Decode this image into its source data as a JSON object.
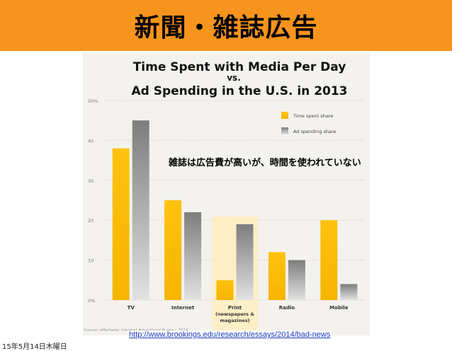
{
  "slide": {
    "title": "新聞・雑誌広告",
    "annotation": "雑誌は広告費が高いが、時間を使われていない",
    "url": "http://www.brookings.edu/research/essays/2014/bad-news",
    "date": "15年5月14日木曜日"
  },
  "chart_data": {
    "type": "bar",
    "title_line1": "Time Spent with Media Per Day",
    "title_line2": "vs.",
    "title_line3": "Ad Spending in the U.S. in 2013",
    "categories": [
      "TV",
      "Internet",
      "Print\n(newspapers &\nmagazines)",
      "Radio",
      "Mobile"
    ],
    "category_labels": [
      [
        "TV"
      ],
      [
        "Internet"
      ],
      [
        "Print",
        "(newspapers &",
        "magazines)"
      ],
      [
        "Radio"
      ],
      [
        "Mobile"
      ]
    ],
    "series": [
      {
        "name": "Time spent share",
        "values": [
          38,
          25,
          5,
          12,
          20
        ],
        "color": "#ffc20e"
      },
      {
        "name": "Ad spending share",
        "values": [
          45,
          22,
          19,
          10,
          4
        ],
        "color": "#8f8f8f"
      }
    ],
    "ylim": [
      0,
      50
    ],
    "yticks": [
      0,
      10,
      20,
      30,
      40,
      50
    ],
    "ytick_labels": [
      "0%",
      "10",
      "20",
      "30",
      "40",
      "50%"
    ],
    "highlight_category": 2,
    "legend_position": "top-right",
    "source": "Source: eMarketer, Internet Advertising Bureau, 2014"
  }
}
